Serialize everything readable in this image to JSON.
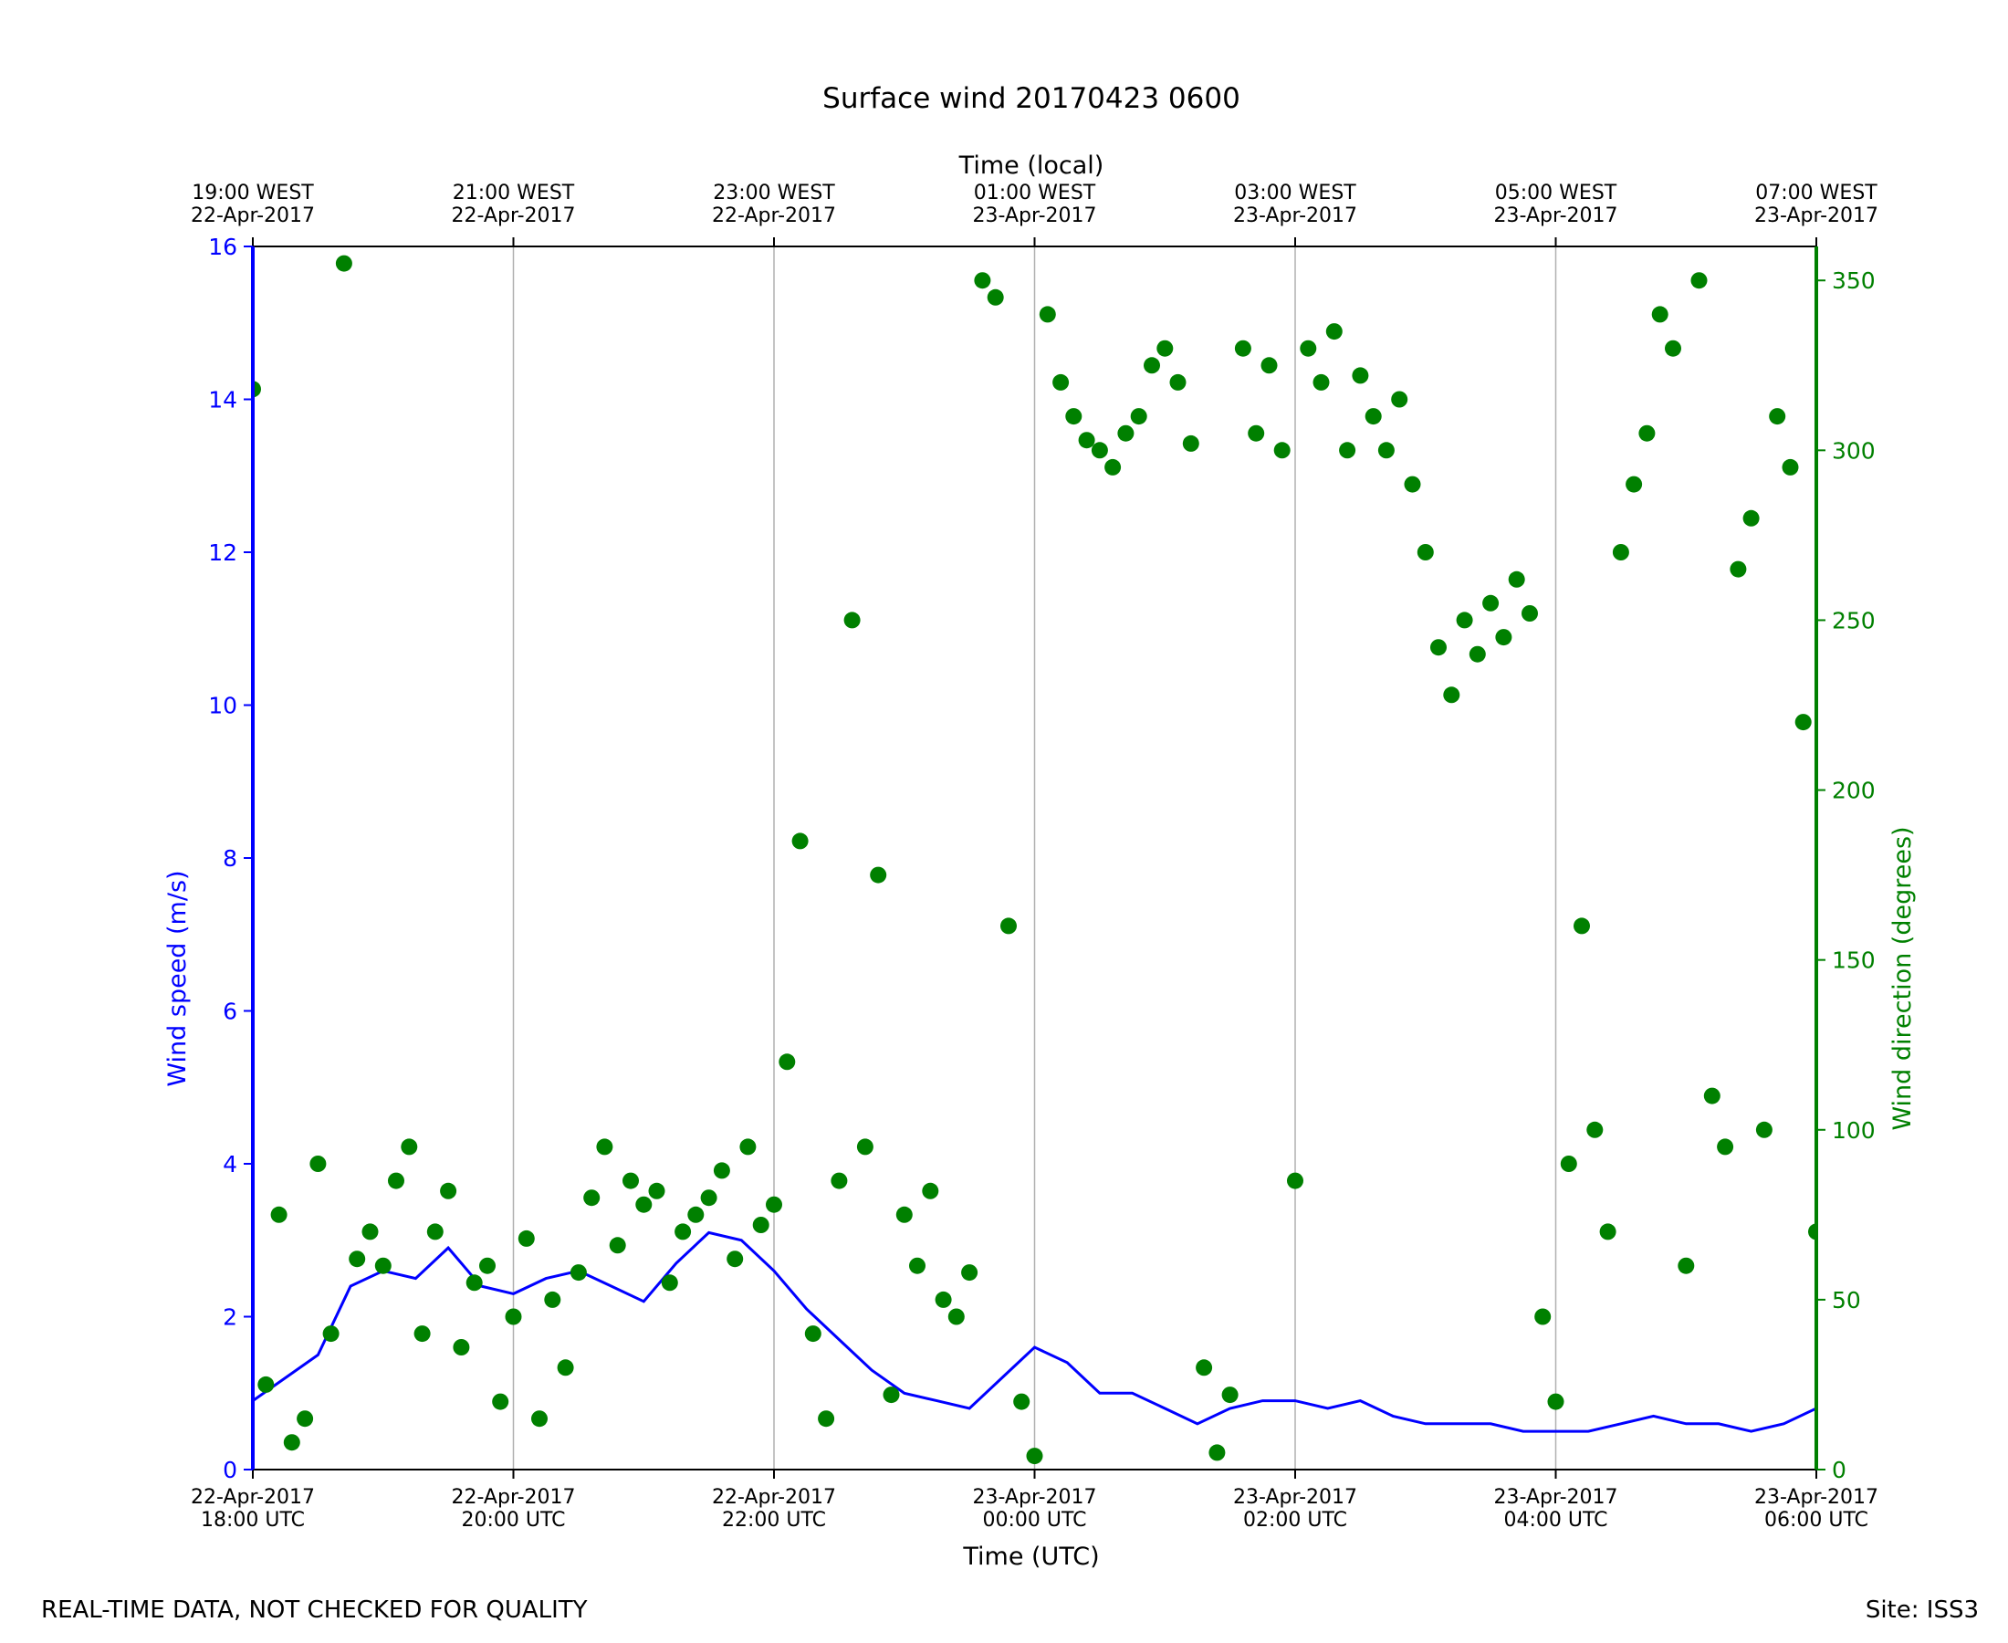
{
  "page": {
    "footer_left": "REAL-TIME DATA, NOT CHECKED FOR QUALITY",
    "footer_right": "Site: ISS3"
  },
  "chart_data": {
    "type": "line+scatter",
    "title": "Surface wind 20170423 0600",
    "xlabel": "Time (UTC)",
    "xlabel_top": "Time (local)",
    "ylabel_left": "Wind speed (m/s)",
    "ylabel_right": "Wind direction (degrees)",
    "x_unit": "hours since 22-Apr-2017 18:00 UTC",
    "xlim": [
      0,
      12
    ],
    "ylim_left": [
      0,
      16
    ],
    "ylim_right": [
      0,
      360
    ],
    "grid": "vertical lines at bottom ticks",
    "x_ticks_bottom": [
      {
        "x": 0,
        "line1": "22-Apr-2017",
        "line2": "18:00 UTC"
      },
      {
        "x": 2,
        "line1": "22-Apr-2017",
        "line2": "20:00 UTC"
      },
      {
        "x": 4,
        "line1": "22-Apr-2017",
        "line2": "22:00 UTC"
      },
      {
        "x": 6,
        "line1": "23-Apr-2017",
        "line2": "00:00 UTC"
      },
      {
        "x": 8,
        "line1": "23-Apr-2017",
        "line2": "02:00 UTC"
      },
      {
        "x": 10,
        "line1": "23-Apr-2017",
        "line2": "04:00 UTC"
      },
      {
        "x": 12,
        "line1": "23-Apr-2017",
        "line2": "06:00 UTC"
      }
    ],
    "x_ticks_top": [
      {
        "x": 0,
        "line1": "19:00 WEST",
        "line2": "22-Apr-2017"
      },
      {
        "x": 2,
        "line1": "21:00 WEST",
        "line2": "22-Apr-2017"
      },
      {
        "x": 4,
        "line1": "23:00 WEST",
        "line2": "22-Apr-2017"
      },
      {
        "x": 6,
        "line1": "01:00 WEST",
        "line2": "23-Apr-2017"
      },
      {
        "x": 8,
        "line1": "03:00 WEST",
        "line2": "23-Apr-2017"
      },
      {
        "x": 10,
        "line1": "05:00 WEST",
        "line2": "23-Apr-2017"
      },
      {
        "x": 12,
        "line1": "07:00 WEST",
        "line2": "23-Apr-2017"
      }
    ],
    "y_ticks_left": [
      0,
      2,
      4,
      6,
      8,
      10,
      12,
      14,
      16
    ],
    "y_ticks_right": [
      0,
      50,
      100,
      150,
      200,
      250,
      300,
      350
    ],
    "colors": {
      "speed": "#0000ff",
      "direction": "#008000",
      "grid": "#b0b0b0",
      "axis": "#000000"
    },
    "series": [
      {
        "name": "Wind speed",
        "axis": "left",
        "style": "line",
        "x": [
          0.0,
          0.25,
          0.5,
          0.75,
          1.0,
          1.25,
          1.5,
          1.75,
          2.0,
          2.25,
          2.5,
          2.75,
          3.0,
          3.25,
          3.5,
          3.75,
          4.0,
          4.25,
          4.5,
          4.75,
          5.0,
          5.25,
          5.5,
          5.75,
          6.0,
          6.25,
          6.5,
          6.75,
          7.0,
          7.25,
          7.5,
          7.75,
          8.0,
          8.25,
          8.5,
          8.75,
          9.0,
          9.25,
          9.5,
          9.75,
          10.0,
          10.25,
          10.5,
          10.75,
          11.0,
          11.25,
          11.5,
          11.75,
          12.0
        ],
        "values": [
          0.9,
          1.2,
          1.5,
          2.4,
          2.6,
          2.5,
          2.9,
          2.4,
          2.3,
          2.5,
          2.6,
          2.4,
          2.2,
          2.7,
          3.1,
          3.0,
          2.6,
          2.1,
          1.7,
          1.3,
          1.0,
          0.9,
          0.8,
          1.2,
          1.6,
          1.4,
          1.0,
          1.0,
          0.8,
          0.6,
          0.8,
          0.9,
          0.9,
          0.8,
          0.9,
          0.7,
          0.6,
          0.6,
          0.6,
          0.5,
          0.5,
          0.5,
          0.6,
          0.7,
          0.6,
          0.6,
          0.5,
          0.6,
          0.8
        ]
      },
      {
        "name": "Wind direction",
        "axis": "right",
        "style": "scatter",
        "x": [
          0.0,
          0.1,
          0.2,
          0.3,
          0.4,
          0.5,
          0.6,
          0.7,
          0.8,
          0.9,
          1.0,
          1.1,
          1.2,
          1.3,
          1.4,
          1.5,
          1.6,
          1.7,
          1.8,
          1.9,
          2.0,
          2.1,
          2.2,
          2.3,
          2.4,
          2.5,
          2.6,
          2.7,
          2.8,
          2.9,
          3.0,
          3.1,
          3.2,
          3.3,
          3.4,
          3.5,
          3.6,
          3.7,
          3.8,
          3.9,
          4.0,
          4.1,
          4.2,
          4.3,
          4.4,
          4.5,
          4.6,
          4.7,
          4.8,
          4.9,
          5.0,
          5.1,
          5.2,
          5.3,
          5.4,
          5.5,
          5.6,
          5.7,
          5.8,
          5.9,
          6.0,
          6.1,
          6.2,
          6.3,
          6.4,
          6.5,
          6.6,
          6.7,
          6.8,
          6.9,
          7.0,
          7.1,
          7.2,
          7.3,
          7.4,
          7.5,
          7.6,
          7.7,
          7.8,
          7.9,
          8.0,
          8.1,
          8.2,
          8.3,
          8.4,
          8.5,
          8.6,
          8.7,
          8.8,
          8.9,
          9.0,
          9.1,
          9.2,
          9.3,
          9.4,
          9.5,
          9.6,
          9.7,
          9.8,
          9.9,
          10.0,
          10.1,
          10.2,
          10.3,
          10.4,
          10.5,
          10.6,
          10.7,
          10.8,
          10.9,
          11.0,
          11.1,
          11.2,
          11.3,
          11.4,
          11.5,
          11.6,
          11.7,
          11.8,
          11.9,
          12.0
        ],
        "values": [
          318,
          25,
          75,
          8,
          15,
          90,
          40,
          355,
          62,
          70,
          60,
          85,
          95,
          40,
          70,
          82,
          36,
          55,
          60,
          20,
          45,
          68,
          15,
          50,
          30,
          58,
          80,
          95,
          66,
          85,
          78,
          82,
          55,
          70,
          75,
          80,
          88,
          62,
          95,
          72,
          78,
          120,
          185,
          40,
          15,
          85,
          250,
          95,
          175,
          22,
          75,
          60,
          82,
          50,
          45,
          58,
          350,
          345,
          160,
          20,
          4,
          340,
          320,
          310,
          303,
          300,
          295,
          305,
          310,
          325,
          330,
          320,
          302,
          30,
          5,
          22,
          330,
          305,
          325,
          300,
          85,
          330,
          320,
          335,
          300,
          322,
          310,
          300,
          315,
          290,
          270,
          242,
          228,
          250,
          240,
          255,
          245,
          262,
          252,
          45,
          20,
          90,
          160,
          100,
          70,
          270,
          290,
          305,
          340,
          330,
          60,
          350,
          110,
          95,
          265,
          280,
          100,
          310,
          295,
          220,
          70
        ]
      }
    ]
  }
}
